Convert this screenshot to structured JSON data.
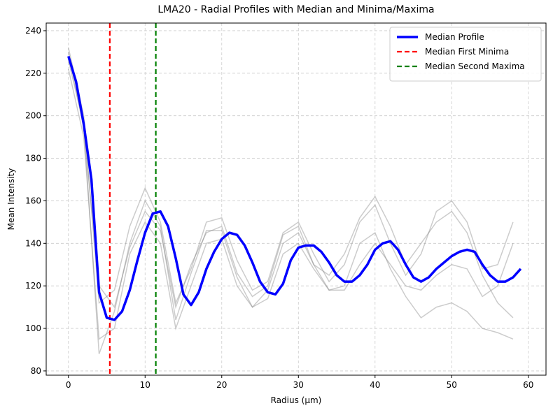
{
  "chart_data": {
    "type": "line",
    "title": "LMA20 - Radial Profiles with Median and Minima/Maxima",
    "xlabel": "Radius (µm)",
    "ylabel": "Mean Intensity",
    "xlim": [
      -2.9,
      62.3
    ],
    "ylim": [
      78,
      243.6
    ],
    "xticks": [
      0,
      10,
      20,
      30,
      40,
      50,
      60
    ],
    "yticks": [
      80,
      100,
      120,
      140,
      160,
      180,
      200,
      220,
      240
    ],
    "grid": true,
    "legend": "upper-right",
    "profiles": {
      "color": "#808080",
      "x": [
        0,
        2,
        4,
        6,
        8,
        10,
        12,
        14,
        16,
        18,
        20,
        22,
        24,
        26,
        28,
        30,
        32,
        34,
        36,
        38,
        40,
        42,
        44,
        46,
        48,
        50,
        52,
        54,
        56,
        58
      ],
      "values": [
        [
          232,
          200,
          112,
          118,
          148,
          166,
          150,
          112,
          128,
          150,
          152,
          132,
          118,
          122,
          145,
          150,
          135,
          122,
          130,
          150,
          158,
          140,
          125,
          135,
          155,
          160,
          150,
          128,
          130,
          150
        ],
        [
          222,
          190,
          95,
          100,
          135,
          150,
          140,
          100,
          120,
          140,
          142,
          120,
          110,
          114,
          135,
          140,
          128,
          118,
          120,
          140,
          145,
          128,
          115,
          105,
          110,
          112,
          108,
          100,
          98,
          95
        ],
        [
          226,
          196,
          88,
          108,
          140,
          160,
          148,
          104,
          126,
          146,
          146,
          124,
          110,
          118,
          140,
          145,
          130,
          118,
          118,
          130,
          140,
          130,
          120,
          118,
          125,
          130,
          128,
          115,
          120,
          140
        ],
        [
          230,
          194,
          120,
          110,
          138,
          155,
          146,
          110,
          130,
          145,
          148,
          126,
          115,
          120,
          144,
          148,
          130,
          125,
          135,
          152,
          162,
          148,
          130,
          140,
          150,
          155,
          145,
          125,
          112,
          105
        ]
      ]
    },
    "x": [
      0,
      1,
      2,
      3,
      4,
      5,
      6,
      7,
      8,
      9,
      10,
      11,
      12,
      13,
      14,
      15,
      16,
      17,
      18,
      19,
      20,
      21,
      22,
      23,
      24,
      25,
      26,
      27,
      28,
      29,
      30,
      31,
      32,
      33,
      34,
      35,
      36,
      37,
      38,
      39,
      40,
      41,
      42,
      43,
      44,
      45,
      46,
      47,
      48,
      49,
      50,
      51,
      52,
      53,
      54,
      55,
      56,
      57,
      58,
      59
    ],
    "series": [
      {
        "name": "Median Profile",
        "color": "#0000ff",
        "values": [
          228,
          216,
          196,
          170,
          117,
          105,
          104,
          108,
          118,
          132,
          145,
          154,
          155,
          148,
          133,
          116,
          111,
          117,
          128,
          136,
          142,
          145,
          144,
          139,
          131,
          122,
          117,
          116,
          121,
          132,
          138,
          139,
          139,
          136,
          131,
          125,
          122,
          122,
          125,
          130,
          137,
          140,
          141,
          137,
          130,
          124,
          122,
          124,
          128,
          131,
          134,
          136,
          137,
          136,
          130,
          125,
          122,
          122,
          124,
          128
        ]
      }
    ],
    "vlines": [
      {
        "name": "Median First Minima",
        "color": "#ff0000",
        "x": 5.4
      },
      {
        "name": "Median Second Maxima",
        "color": "#008000",
        "x": 11.4
      }
    ]
  }
}
